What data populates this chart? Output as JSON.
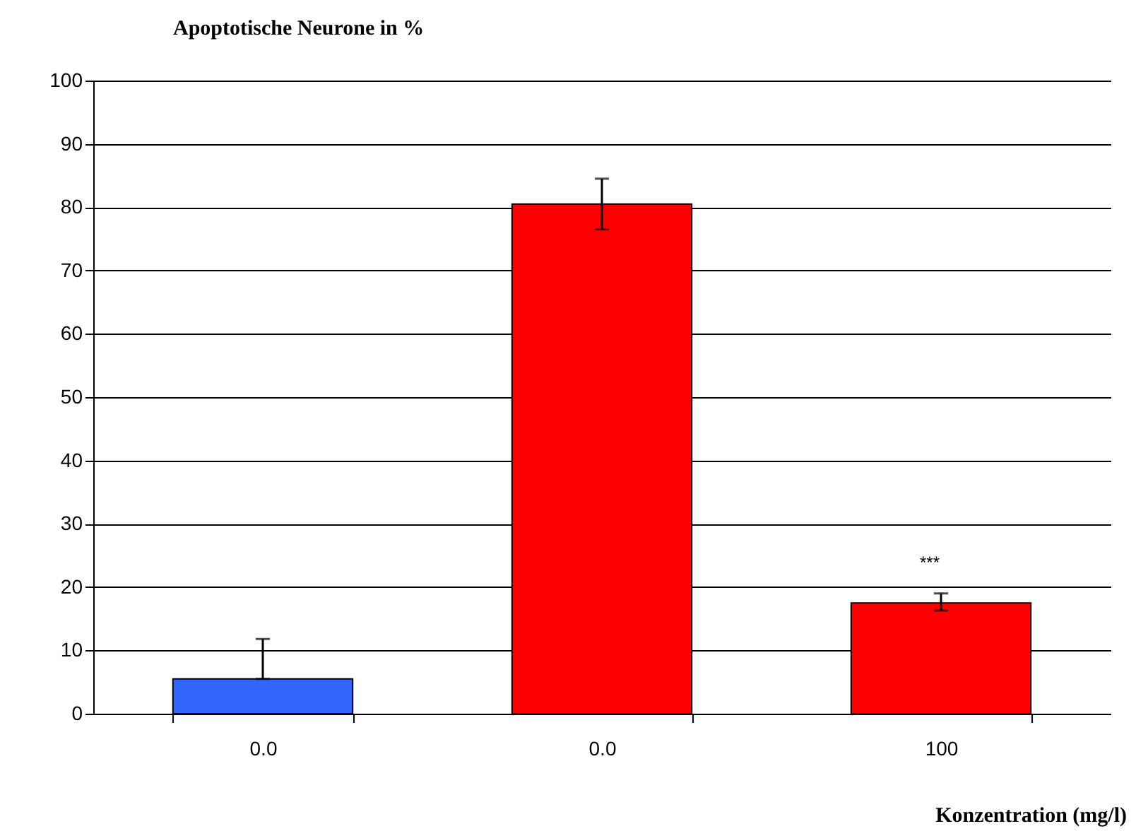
{
  "chart_data": {
    "type": "bar",
    "ylabel": "Apoptotische Neurone in %",
    "xlabel": "Konzentration (mg/l)",
    "categories": [
      "0.0",
      "0.0",
      "100"
    ],
    "values": [
      5.5,
      80.5,
      17.5
    ],
    "colors": [
      "#3366ff",
      "#ff0000",
      "#ff0000"
    ],
    "errors": [
      [
        5.5,
        11.8
      ],
      [
        76.5,
        84.5
      ],
      [
        16.3,
        19
      ]
    ],
    "ylim": [
      0,
      100
    ],
    "yticks": [
      0,
      10,
      20,
      30,
      40,
      50,
      60,
      70,
      80,
      90,
      100
    ],
    "grid": "y",
    "annotations": [
      "***"
    ]
  }
}
